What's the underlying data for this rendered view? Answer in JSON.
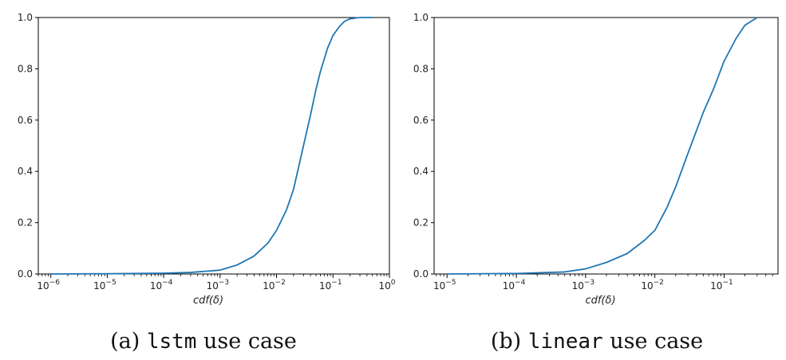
{
  "chart_data": [
    {
      "type": "line",
      "caption_prefix": "(a) ",
      "caption_code": "lstm",
      "caption_suffix": " use case",
      "xlabel": "cdf(δ)",
      "ylabel": "",
      "x_scale": "log",
      "xlim": [
        6e-07,
        1.0
      ],
      "ylim": [
        0.0,
        1.0
      ],
      "x_ticks": [
        1e-06,
        1e-05,
        0.0001,
        0.001,
        0.01,
        0.1,
        1.0
      ],
      "x_tick_labels": [
        {
          "base": "10",
          "exp": "−6"
        },
        {
          "base": "10",
          "exp": "−5"
        },
        {
          "base": "10",
          "exp": "−4"
        },
        {
          "base": "10",
          "exp": "−3"
        },
        {
          "base": "10",
          "exp": "−2"
        },
        {
          "base": "10",
          "exp": "−1"
        },
        {
          "base": "10",
          "exp": "0"
        }
      ],
      "y_ticks": [
        "0.0",
        "0.2",
        "0.4",
        "0.6",
        "0.8",
        "1.0"
      ],
      "grid": false,
      "colors": {
        "line": "#1f77b4",
        "axis": "#000000"
      },
      "series": [
        {
          "x": [
            1e-06,
            1e-05,
            0.0001,
            0.0003,
            0.001,
            0.002,
            0.004,
            0.007,
            0.01,
            0.015,
            0.02,
            0.03,
            0.04,
            0.05,
            0.06,
            0.08,
            0.1,
            0.13,
            0.16,
            0.2,
            0.3,
            0.4,
            0.5
          ],
          "y": [
            0.0,
            0.001,
            0.003,
            0.006,
            0.015,
            0.035,
            0.07,
            0.12,
            0.17,
            0.25,
            0.33,
            0.5,
            0.62,
            0.72,
            0.79,
            0.88,
            0.93,
            0.965,
            0.985,
            0.995,
            1.0,
            1.0,
            1.0
          ]
        }
      ]
    },
    {
      "type": "line",
      "caption_prefix": "(b) ",
      "caption_code": "linear",
      "caption_suffix": " use case",
      "xlabel": "cdf(δ)",
      "ylabel": "",
      "x_scale": "log",
      "xlim": [
        6.5e-06,
        0.6
      ],
      "ylim": [
        0.0,
        1.0
      ],
      "x_ticks": [
        1e-05,
        0.0001,
        0.001,
        0.01,
        0.1
      ],
      "x_tick_labels": [
        {
          "base": "10",
          "exp": "−5"
        },
        {
          "base": "10",
          "exp": "−4"
        },
        {
          "base": "10",
          "exp": "−3"
        },
        {
          "base": "10",
          "exp": "−2"
        },
        {
          "base": "10",
          "exp": "−1"
        }
      ],
      "y_ticks": [
        "0.0",
        "0.2",
        "0.4",
        "0.6",
        "0.8",
        "1.0"
      ],
      "grid": false,
      "colors": {
        "line": "#1f77b4",
        "axis": "#000000"
      },
      "series": [
        {
          "x": [
            1e-05,
            0.0001,
            0.0005,
            0.001,
            0.002,
            0.004,
            0.007,
            0.01,
            0.015,
            0.02,
            0.03,
            0.04,
            0.05,
            0.07,
            0.1,
            0.15,
            0.2,
            0.3
          ],
          "y": [
            0.0,
            0.002,
            0.008,
            0.02,
            0.045,
            0.08,
            0.13,
            0.17,
            0.26,
            0.34,
            0.47,
            0.56,
            0.63,
            0.72,
            0.83,
            0.92,
            0.97,
            1.0
          ]
        }
      ]
    }
  ]
}
